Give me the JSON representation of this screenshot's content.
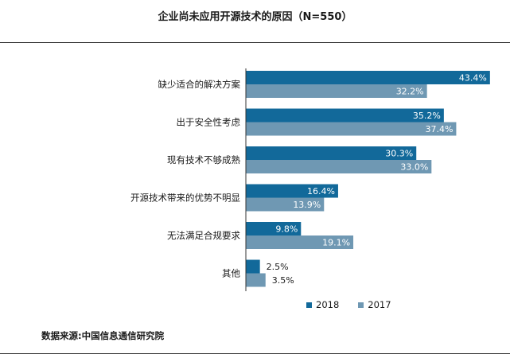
{
  "title": "企业尚未应用开源技术的原因（N=550）",
  "source": "数据来源:中国信息通信研究院",
  "colors": {
    "2018": "#12699a",
    "2017": "#6f98b3"
  },
  "chart_data": {
    "type": "bar",
    "orientation": "horizontal",
    "title": "企业尚未应用开源技术的原因（N=550）",
    "xlim": [
      0,
      45
    ],
    "grid": false,
    "legend_position": "bottom",
    "categories": [
      "缺少适合的解决方案",
      "出于安全性考虑",
      "现有技术不够成熟",
      "开源技术带来的优势不明显",
      "无法满足合规要求",
      "其他"
    ],
    "series": [
      {
        "name": "2018",
        "values": [
          43.4,
          35.2,
          30.3,
          16.4,
          9.8,
          2.5
        ],
        "labels": [
          "43.4%",
          "35.2%",
          "30.3%",
          "16.4%",
          "9.8%",
          "2.5%"
        ]
      },
      {
        "name": "2017",
        "values": [
          32.2,
          37.4,
          33.0,
          13.9,
          19.1,
          3.5
        ],
        "labels": [
          "32.2%",
          "37.4%",
          "33.0%",
          "13.9%",
          "19.1%",
          "3.5%"
        ]
      }
    ]
  }
}
